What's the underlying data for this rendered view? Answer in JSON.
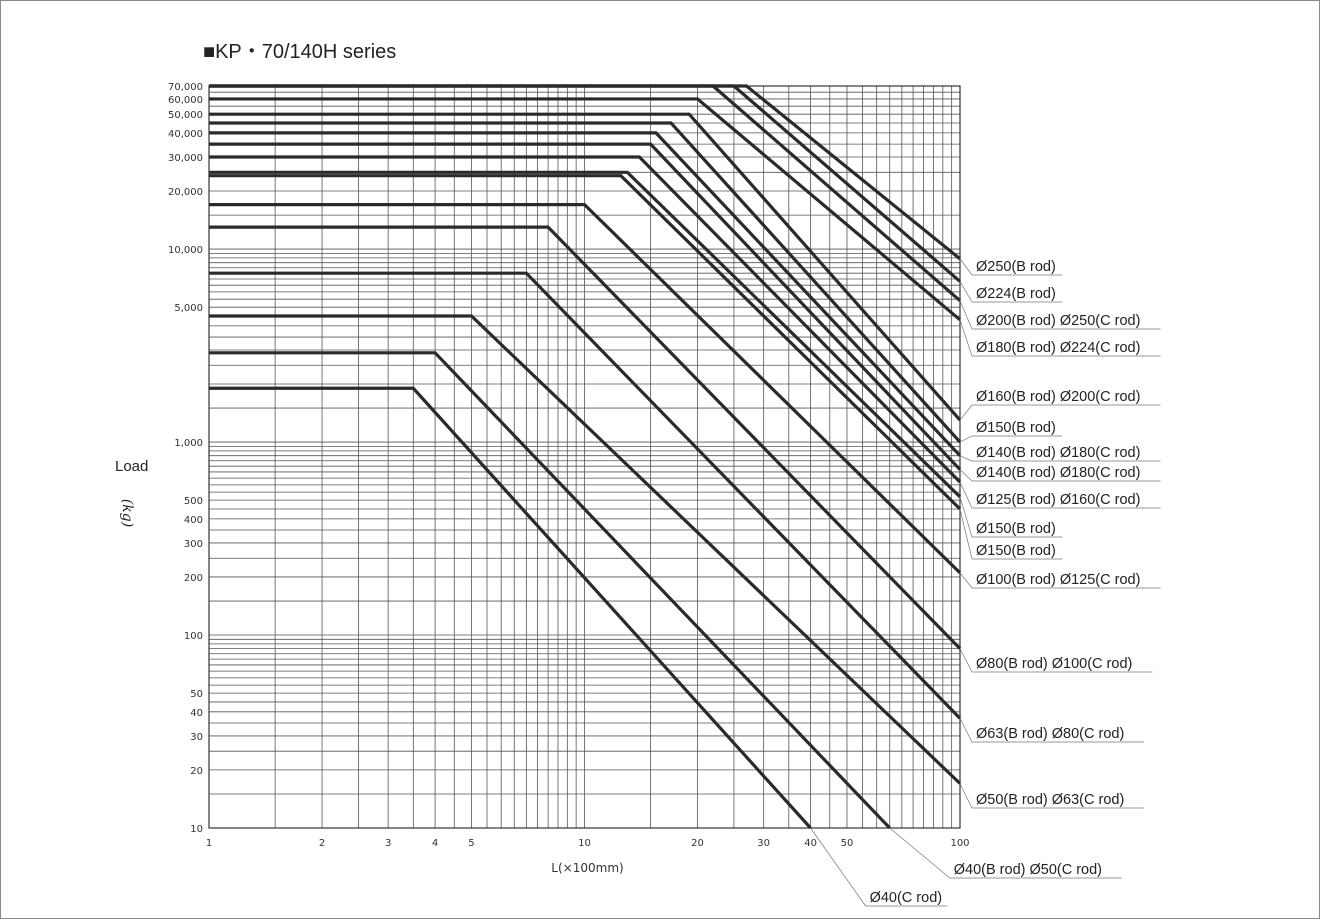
{
  "chart_data": {
    "type": "line",
    "title": "■KP・70/140H series",
    "ylabel": "Load",
    "yunit": "(kg)",
    "xlabel": "L(×100mm)",
    "xscale": "log",
    "yscale": "log",
    "xlim": [
      1,
      100
    ],
    "ylim": [
      10,
      70000
    ],
    "grid": true,
    "x_tick_labels": [
      "1",
      "2",
      "3",
      "4",
      "5",
      "10",
      "20",
      "30",
      "40",
      "50",
      "100"
    ],
    "y_tick_labels": [
      "10",
      "20",
      "30",
      "40",
      "50",
      "100",
      "200",
      "300",
      "400",
      "500",
      "1,000",
      "5,000",
      "10,000",
      "20,000",
      "30,000",
      "40,000",
      "50,000",
      "60,000",
      "70,000"
    ],
    "series": [
      {
        "name": "Ø250(B rod)",
        "plateau": 70000,
        "knee_x": 27,
        "end_x": 100,
        "end_y": 8900
      },
      {
        "name": "Ø224(B rod)",
        "plateau": 70000,
        "knee_x": 25,
        "end_x": 100,
        "end_y": 6800
      },
      {
        "name": "Ø200(B rod) Ø250(C rod)",
        "plateau": 70000,
        "knee_x": 22,
        "end_x": 100,
        "end_y": 5400
      },
      {
        "name": "Ø180(B rod) Ø224(C rod)",
        "plateau": 60000,
        "knee_x": 20,
        "end_x": 100,
        "end_y": 4300
      },
      {
        "name": "Ø160(B rod) Ø200(C rod)",
        "plateau": 50000,
        "knee_x": 19,
        "end_x": 100,
        "end_y": 1300
      },
      {
        "name": "Ø150(B rod)",
        "plateau": 45000,
        "knee_x": 17,
        "end_x": 100,
        "end_y": 1000
      },
      {
        "name": "Ø140(B rod) Ø180(C rod)",
        "plateau": 40000,
        "knee_x": 15.5,
        "end_x": 100,
        "end_y": 850
      },
      {
        "name": "Ø140(B rod) Ø180(C rod)",
        "plateau": 35000,
        "knee_x": 15,
        "end_x": 100,
        "end_y": 720
      },
      {
        "name": "Ø125(B rod) Ø160(C rod)",
        "plateau": 30000,
        "knee_x": 14,
        "end_x": 100,
        "end_y": 620
      },
      {
        "name": "Ø150(B rod)",
        "plateau": 25000,
        "knee_x": 13,
        "end_x": 100,
        "end_y": 520
      },
      {
        "name": "Ø150(B rod)",
        "plateau": 24000,
        "knee_x": 12.5,
        "end_x": 100,
        "end_y": 450
      },
      {
        "name": "Ø100(B rod) Ø125(C rod)",
        "plateau": 17000,
        "knee_x": 10,
        "end_x": 100,
        "end_y": 210
      },
      {
        "name": "Ø80(B rod) Ø100(C rod)",
        "plateau": 13000,
        "knee_x": 8,
        "end_x": 100,
        "end_y": 85
      },
      {
        "name": "Ø63(B rod) Ø80(C rod)",
        "plateau": 7500,
        "knee_x": 7,
        "end_x": 100,
        "end_y": 37
      },
      {
        "name": "Ø50(B rod) Ø63(C rod)",
        "plateau": 4500,
        "knee_x": 5,
        "end_x": 100,
        "end_y": 17
      },
      {
        "name": "Ø40(B rod) Ø50(C rod)",
        "plateau": 2900,
        "knee_x": 4,
        "end_x": 65,
        "end_y": 10
      },
      {
        "name": "Ø40(C rod)",
        "plateau": 1900,
        "knee_x": 3.5,
        "end_x": 40,
        "end_y": 10
      }
    ]
  }
}
